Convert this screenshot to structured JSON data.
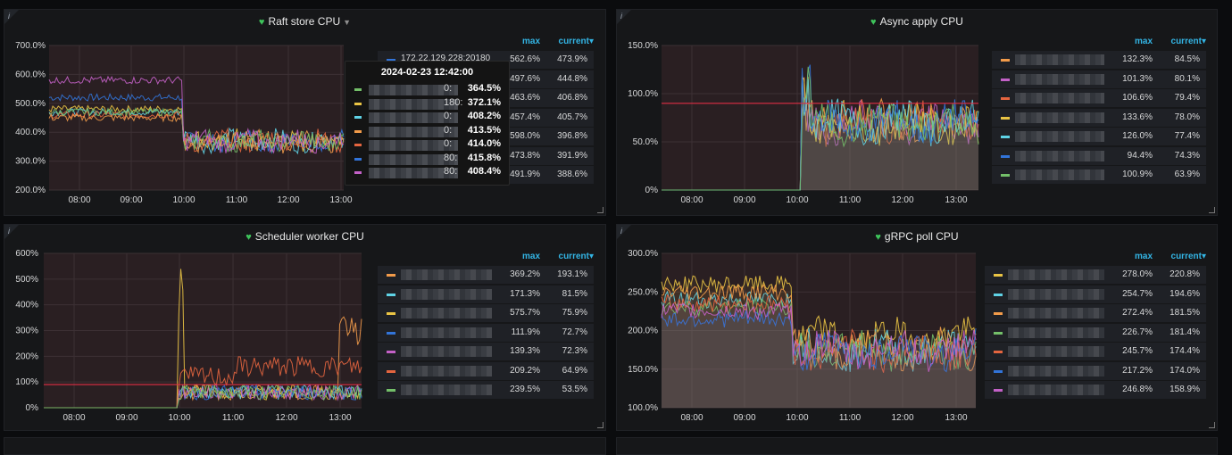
{
  "colors": {
    "s1": "#f29b4a",
    "s2": "#c361c7",
    "s3": "#e4653f",
    "s4": "#eac444",
    "s5": "#5fd3e6",
    "s6": "#3274d9",
    "s7": "#73bf69"
  },
  "legend_headers": {
    "max": "max",
    "current": "current▾"
  },
  "panels": [
    {
      "title": "Raft store CPU",
      "yticks": [
        "700.0%",
        "600.0%",
        "500.0%",
        "400.0%",
        "300.0%",
        "200.0%"
      ],
      "xticks": [
        "08:00",
        "09:00",
        "10:00",
        "11:00",
        "12:00",
        "13:00"
      ],
      "threshold": null,
      "series": [
        {
          "name": "172.22.129.228:20180",
          "color": "#3274d9",
          "max": "562.6%",
          "current": "473.9%"
        },
        {
          "name": "",
          "color": "#eac444",
          "max": "497.6%",
          "current": "444.8%"
        },
        {
          "name": "",
          "color": "#5fd3e6",
          "max": "463.6%",
          "current": "406.8%"
        },
        {
          "name": "",
          "color": "#e4653f",
          "max": "457.4%",
          "current": "405.7%"
        },
        {
          "name": "",
          "color": "#f29b4a",
          "max": "598.0%",
          "current": "396.8%"
        },
        {
          "name": "",
          "color": "#73bf69",
          "max": "473.8%",
          "current": "391.9%"
        },
        {
          "name": "",
          "color": "#c361c7",
          "max": "491.9%",
          "current": "388.6%"
        }
      ]
    },
    {
      "title": "Async apply CPU",
      "yticks": [
        "150.0%",
        "100.0%",
        "50.0%",
        "0%"
      ],
      "xticks": [
        "08:00",
        "09:00",
        "10:00",
        "11:00",
        "12:00",
        "13:00"
      ],
      "threshold": 90,
      "series": [
        {
          "name": "",
          "color": "#f29b4a",
          "max": "132.3%",
          "current": "84.5%"
        },
        {
          "name": "",
          "color": "#c361c7",
          "max": "101.3%",
          "current": "80.1%"
        },
        {
          "name": "",
          "color": "#e4653f",
          "max": "106.6%",
          "current": "79.4%"
        },
        {
          "name": "",
          "color": "#eac444",
          "max": "133.6%",
          "current": "78.0%"
        },
        {
          "name": "",
          "color": "#5fd3e6",
          "max": "126.0%",
          "current": "77.4%"
        },
        {
          "name": "",
          "color": "#3274d9",
          "max": "94.4%",
          "current": "74.3%"
        },
        {
          "name": "",
          "color": "#73bf69",
          "max": "100.9%",
          "current": "63.9%"
        }
      ]
    },
    {
      "title": "Scheduler worker CPU",
      "yticks": [
        "600%",
        "500%",
        "400%",
        "300%",
        "200%",
        "100%",
        "0%"
      ],
      "xticks": [
        "08:00",
        "09:00",
        "10:00",
        "11:00",
        "12:00",
        "13:00"
      ],
      "threshold": 90,
      "series": [
        {
          "name": "",
          "color": "#f29b4a",
          "max": "369.2%",
          "current": "193.1%"
        },
        {
          "name": "",
          "color": "#5fd3e6",
          "max": "171.3%",
          "current": "81.5%"
        },
        {
          "name": "",
          "color": "#eac444",
          "max": "575.7%",
          "current": "75.9%"
        },
        {
          "name": "",
          "color": "#3274d9",
          "max": "111.9%",
          "current": "72.7%"
        },
        {
          "name": "",
          "color": "#c361c7",
          "max": "139.3%",
          "current": "72.3%"
        },
        {
          "name": "",
          "color": "#e4653f",
          "max": "209.2%",
          "current": "64.9%"
        },
        {
          "name": "",
          "color": "#73bf69",
          "max": "239.5%",
          "current": "53.5%"
        }
      ]
    },
    {
      "title": "gRPC poll CPU",
      "yticks": [
        "300.0%",
        "250.0%",
        "200.0%",
        "150.0%",
        "100.0%"
      ],
      "xticks": [
        "08:00",
        "09:00",
        "10:00",
        "11:00",
        "12:00",
        "13:00"
      ],
      "threshold": null,
      "series": [
        {
          "name": "",
          "color": "#eac444",
          "max": "278.0%",
          "current": "220.8%"
        },
        {
          "name": "",
          "color": "#5fd3e6",
          "max": "254.7%",
          "current": "194.6%"
        },
        {
          "name": "",
          "color": "#f29b4a",
          "max": "272.4%",
          "current": "181.5%"
        },
        {
          "name": "",
          "color": "#73bf69",
          "max": "226.7%",
          "current": "181.4%"
        },
        {
          "name": "",
          "color": "#e4653f",
          "max": "245.7%",
          "current": "174.4%"
        },
        {
          "name": "",
          "color": "#3274d9",
          "max": "217.2%",
          "current": "174.0%"
        },
        {
          "name": "",
          "color": "#c361c7",
          "max": "246.8%",
          "current": "158.9%"
        }
      ]
    }
  ],
  "tooltip": {
    "time": "2024-02-23 12:42:00",
    "rows": [
      {
        "color": "#73bf69",
        "suffix": "0:",
        "value": "364.5%"
      },
      {
        "color": "#eac444",
        "suffix": "180:",
        "value": "372.1%"
      },
      {
        "color": "#5fd3e6",
        "suffix": "0:",
        "value": "408.2%"
      },
      {
        "color": "#f29b4a",
        "suffix": "0:",
        "value": "413.5%"
      },
      {
        "color": "#e4653f",
        "suffix": "0:",
        "value": "414.0%"
      },
      {
        "color": "#3274d9",
        "suffix": "80:",
        "value": "415.8%"
      },
      {
        "color": "#c361c7",
        "suffix": "80:",
        "value": "408.4%"
      }
    ]
  }
}
